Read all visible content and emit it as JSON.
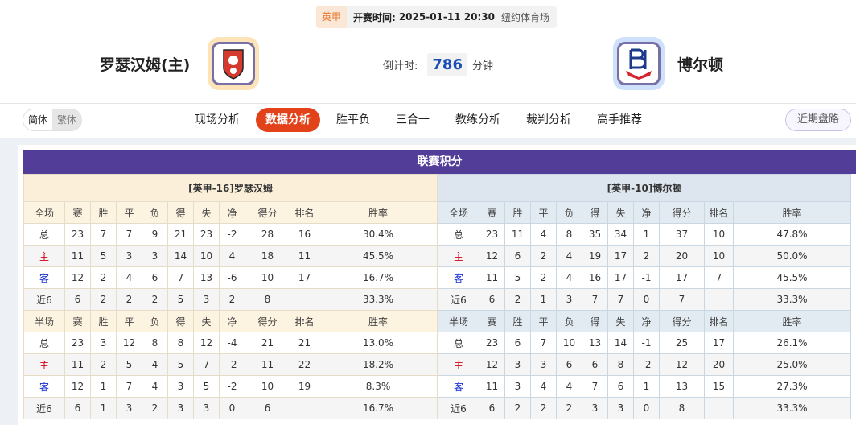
{
  "match": {
    "league": "英甲",
    "time_label": "开赛时间:",
    "time": "2025-01-11 20:30",
    "venue": "纽约体育场",
    "home": "罗瑟汉姆(主)",
    "away": "博尔顿",
    "countdown_label": "倒计时:",
    "countdown": "786",
    "countdown_unit": "分钟"
  },
  "nav": {
    "lang": [
      "简体",
      "繁体"
    ],
    "tabs": [
      "现场分析",
      "数据分析",
      "胜平负",
      "三合一",
      "教练分析",
      "裁判分析",
      "高手推荐"
    ],
    "active": "数据分析",
    "recent": "近期盘路"
  },
  "section_title": "联赛积分",
  "colors": {
    "accent": "#e2421a",
    "title_bar": "#523e98",
    "home_label": "#d0021b",
    "away_label": "#1a2fd0"
  },
  "tables": [
    {
      "team": "[英甲-16]罗瑟汉姆",
      "full": {
        "header": [
          "全场",
          "赛",
          "胜",
          "平",
          "负",
          "得",
          "失",
          "净",
          "得分",
          "排名",
          "胜率"
        ],
        "rows": [
          [
            "总",
            "23",
            "7",
            "7",
            "9",
            "21",
            "23",
            "-2",
            "28",
            "16",
            "30.4%"
          ],
          [
            "主",
            "11",
            "5",
            "3",
            "3",
            "14",
            "10",
            "4",
            "18",
            "11",
            "45.5%"
          ],
          [
            "客",
            "12",
            "2",
            "4",
            "6",
            "7",
            "13",
            "-6",
            "10",
            "17",
            "16.7%"
          ],
          [
            "近6",
            "6",
            "2",
            "2",
            "2",
            "5",
            "3",
            "2",
            "8",
            "",
            "33.3%"
          ]
        ]
      },
      "half": {
        "header": [
          "半场",
          "赛",
          "胜",
          "平",
          "负",
          "得",
          "失",
          "净",
          "得分",
          "排名",
          "胜率"
        ],
        "rows": [
          [
            "总",
            "23",
            "3",
            "12",
            "8",
            "8",
            "12",
            "-4",
            "21",
            "21",
            "13.0%"
          ],
          [
            "主",
            "11",
            "2",
            "5",
            "4",
            "5",
            "7",
            "-2",
            "11",
            "22",
            "18.2%"
          ],
          [
            "客",
            "12",
            "1",
            "7",
            "4",
            "3",
            "5",
            "-2",
            "10",
            "19",
            "8.3%"
          ],
          [
            "近6",
            "6",
            "1",
            "3",
            "2",
            "3",
            "3",
            "0",
            "6",
            "",
            "16.7%"
          ]
        ]
      }
    },
    {
      "team": "[英甲-10]博尔顿",
      "full": {
        "header": [
          "全场",
          "赛",
          "胜",
          "平",
          "负",
          "得",
          "失",
          "净",
          "得分",
          "排名",
          "胜率"
        ],
        "rows": [
          [
            "总",
            "23",
            "11",
            "4",
            "8",
            "35",
            "34",
            "1",
            "37",
            "10",
            "47.8%"
          ],
          [
            "主",
            "12",
            "6",
            "2",
            "4",
            "19",
            "17",
            "2",
            "20",
            "10",
            "50.0%"
          ],
          [
            "客",
            "11",
            "5",
            "2",
            "4",
            "16",
            "17",
            "-1",
            "17",
            "7",
            "45.5%"
          ],
          [
            "近6",
            "6",
            "2",
            "1",
            "3",
            "7",
            "7",
            "0",
            "7",
            "",
            "33.3%"
          ]
        ]
      },
      "half": {
        "header": [
          "半场",
          "赛",
          "胜",
          "平",
          "负",
          "得",
          "失",
          "净",
          "得分",
          "排名",
          "胜率"
        ],
        "rows": [
          [
            "总",
            "23",
            "6",
            "7",
            "10",
            "13",
            "14",
            "-1",
            "25",
            "17",
            "26.1%"
          ],
          [
            "主",
            "12",
            "3",
            "3",
            "6",
            "6",
            "8",
            "-2",
            "12",
            "20",
            "25.0%"
          ],
          [
            "客",
            "11",
            "3",
            "4",
            "4",
            "7",
            "6",
            "1",
            "13",
            "15",
            "27.3%"
          ],
          [
            "近6",
            "6",
            "2",
            "2",
            "2",
            "3",
            "3",
            "0",
            "8",
            "",
            "33.3%"
          ]
        ]
      }
    }
  ]
}
